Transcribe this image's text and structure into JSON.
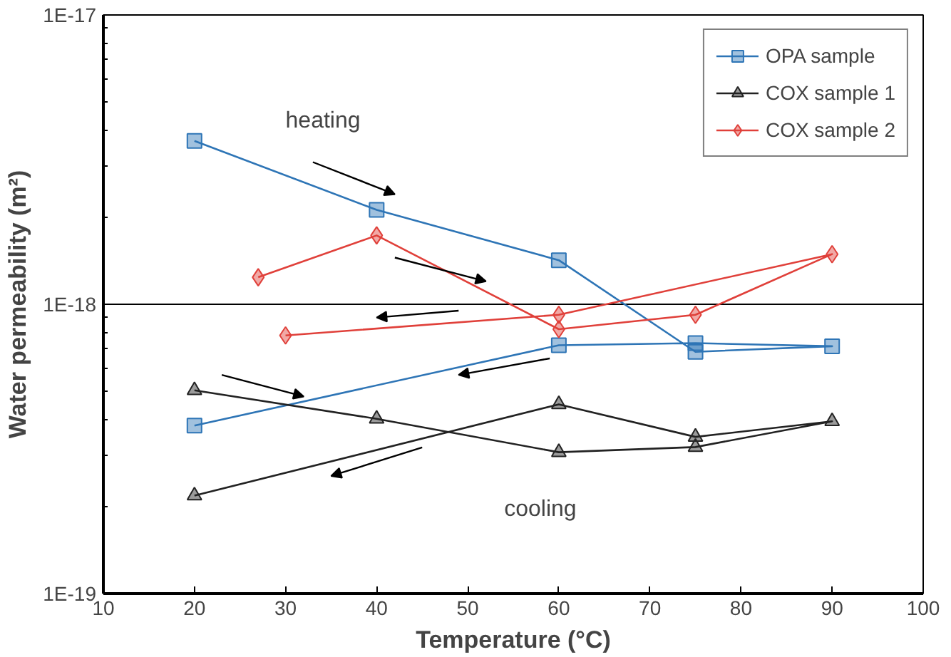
{
  "chart_data": {
    "type": "line",
    "xlabel": "Temperature (°C)",
    "ylabel": "Water permeability (m²)",
    "xlim": [
      10,
      100
    ],
    "xticks": [
      10,
      20,
      30,
      40,
      50,
      60,
      70,
      80,
      90,
      100
    ],
    "ylim": [
      1e-19,
      1e-17
    ],
    "yticks": [
      {
        "value": 1e-19,
        "label": "1E-19"
      },
      {
        "value": 1e-18,
        "label": "1E-18"
      },
      {
        "value": 1e-17,
        "label": "1E-17"
      }
    ],
    "log": "y",
    "grid": "y",
    "legend": "top right",
    "annotations": [
      "heating",
      "cooling"
    ],
    "series": [
      {
        "name": "OPA sample",
        "color": "#2e75b6",
        "marker": "square",
        "x": [
          20,
          40,
          60,
          75,
          90,
          75,
          60,
          20
        ],
        "values": [
          3.67e-18,
          2.12e-18,
          1.42e-18,
          6.85e-19,
          7.16e-19,
          7.34e-19,
          7.22e-19,
          3.81e-19
        ]
      },
      {
        "name": "COX sample 1",
        "color": "#222222",
        "marker": "triangle",
        "x": [
          20,
          40,
          60,
          75,
          90,
          75,
          60,
          20
        ],
        "values": [
          5.04e-19,
          4.02e-19,
          3.08e-19,
          3.21e-19,
          3.94e-19,
          3.48e-19,
          4.51e-19,
          2.18e-19
        ]
      },
      {
        "name": "COX sample 2",
        "color": "#e0403a",
        "marker": "diamond",
        "x": [
          27,
          40,
          60,
          75,
          90,
          60,
          30
        ],
        "values": [
          1.24e-18,
          1.73e-18,
          8.2e-19,
          9.2e-19,
          1.49e-18,
          9.2e-19,
          7.8e-19
        ]
      }
    ]
  }
}
